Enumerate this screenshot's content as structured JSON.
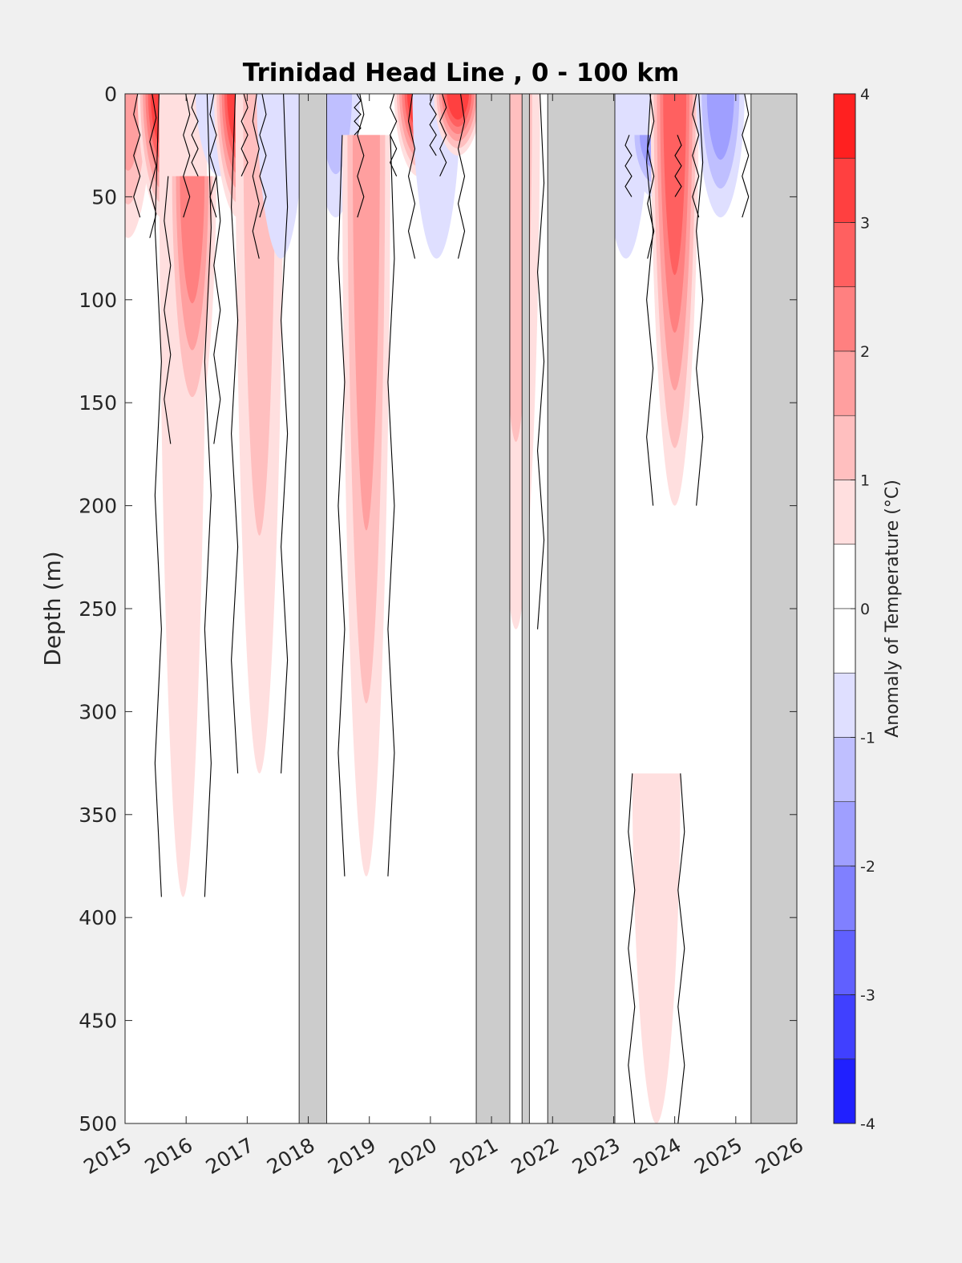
{
  "chart_data": {
    "type": "heatmap",
    "title": "Trinidad Head Line , 0 - 100 km",
    "ylabel": "Depth (m)",
    "xlabel": "",
    "xlim": [
      2015,
      2026
    ],
    "ylim": [
      0,
      500
    ],
    "y_reversed": true,
    "x_ticks": [
      "2015",
      "2016",
      "2017",
      "2018",
      "2019",
      "2020",
      "2021",
      "2022",
      "2023",
      "2024",
      "2025",
      "2026"
    ],
    "y_ticks": [
      "0",
      "50",
      "100",
      "150",
      "200",
      "250",
      "300",
      "350",
      "400",
      "450",
      "500"
    ],
    "colorbar": {
      "label": "Anomaly of Temperature (°C)",
      "range": [
        -4,
        4
      ],
      "step": 0.5,
      "ticks": [
        "4",
        "3",
        "2",
        "1",
        "0",
        "-1",
        "-2",
        "-3",
        "-4"
      ]
    },
    "no_data_periods": [
      [
        2017.85,
        2018.3
      ],
      [
        2020.75,
        2021.3
      ],
      [
        2021.5,
        2021.62
      ],
      [
        2021.92,
        2023.02
      ],
      [
        2025.25,
        2026.0
      ]
    ],
    "anomaly_features": [
      {
        "time": 2015.05,
        "depth_top": 0,
        "depth_bottom": 70,
        "anomaly": 1.5
      },
      {
        "time": 2015.6,
        "depth_top": 0,
        "depth_bottom": 60,
        "anomaly": 3.3
      },
      {
        "time": 2015.95,
        "depth_top": 0,
        "depth_bottom": 390,
        "anomaly": 0.8
      },
      {
        "time": 2016.1,
        "depth_top": 40,
        "depth_bottom": 170,
        "anomaly": 2.2
      },
      {
        "time": 2016.55,
        "depth_top": 0,
        "depth_bottom": 40,
        "anomaly": -0.8
      },
      {
        "time": 2016.85,
        "depth_top": 0,
        "depth_bottom": 60,
        "anomaly": 3.1
      },
      {
        "time": 2017.2,
        "depth_top": 0,
        "depth_bottom": 330,
        "anomaly": 1.2
      },
      {
        "time": 2017.55,
        "depth_top": 0,
        "depth_bottom": 80,
        "anomaly": -0.7
      },
      {
        "time": 2018.4,
        "depth_top": 0,
        "depth_bottom": 20,
        "anomaly": 0.8
      },
      {
        "time": 2018.45,
        "depth_top": 0,
        "depth_bottom": 60,
        "anomaly": -1.2
      },
      {
        "time": 2018.95,
        "depth_top": 20,
        "depth_bottom": 380,
        "anomaly": 1.6
      },
      {
        "time": 2019.8,
        "depth_top": 0,
        "depth_bottom": 40,
        "anomaly": 3.1
      },
      {
        "time": 2020.1,
        "depth_top": 0,
        "depth_bottom": 80,
        "anomaly": -0.9
      },
      {
        "time": 2020.45,
        "depth_top": 0,
        "depth_bottom": 30,
        "anomaly": 3.1
      },
      {
        "time": 2021.4,
        "depth_top": 0,
        "depth_bottom": 260,
        "anomaly": 1.3
      },
      {
        "time": 2023.2,
        "depth_top": 0,
        "depth_bottom": 80,
        "anomaly": -0.8
      },
      {
        "time": 2023.65,
        "depth_top": 20,
        "depth_bottom": 50,
        "anomaly": -1.7
      },
      {
        "time": 2023.7,
        "depth_top": 330,
        "depth_bottom": 500,
        "anomaly": 0.8
      },
      {
        "time": 2024.0,
        "depth_top": 0,
        "depth_bottom": 200,
        "anomaly": 2.8
      },
      {
        "time": 2024.75,
        "depth_top": 0,
        "depth_bottom": 60,
        "anomaly": -1.7
      }
    ]
  }
}
